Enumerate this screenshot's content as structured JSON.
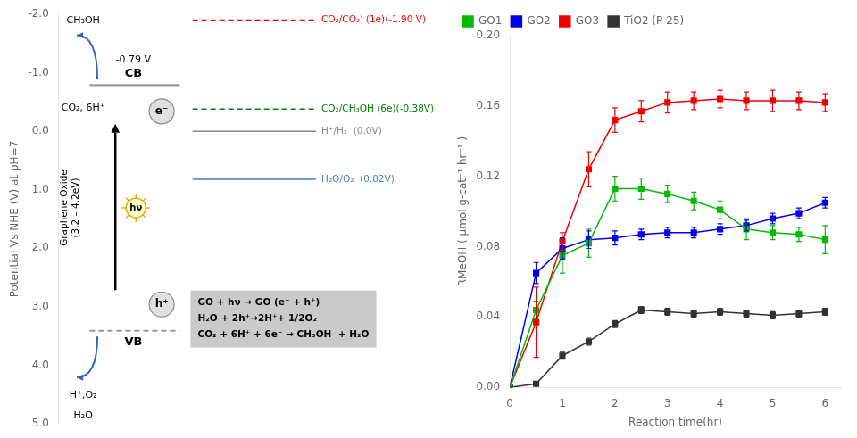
{
  "chart_data": [
    {
      "type": "levels",
      "ylabel": "Potential Vs NHE (V) at pH=7",
      "ylim": [
        5,
        -2
      ],
      "yticks": [
        {
          "value": -2,
          "label": "-2.0"
        },
        {
          "value": -1,
          "label": "-1.0"
        },
        {
          "value": 0,
          "label": "0.0"
        },
        {
          "value": 1,
          "label": "1.0"
        },
        {
          "value": 2,
          "label": "2.0"
        },
        {
          "value": 3,
          "label": "3.0"
        },
        {
          "value": 4,
          "label": "4.0"
        },
        {
          "value": 5,
          "label": "5.0"
        }
      ],
      "grid": false,
      "data_labels": true,
      "series": [
        {
          "name": "CO₂/CO₂’ (1e)(-1.90 V)",
          "type": "reference",
          "color": "red",
          "line_style": "dashed",
          "values": [
            -1.9
          ]
        },
        {
          "name": "CO₂/CH₃OH (6e)(-0.38V)",
          "type": "reference",
          "color": "green",
          "line_style": "dashed",
          "values": [
            -0.38
          ]
        },
        {
          "name": "H⁺/H₂  (0.0V)",
          "type": "reference",
          "color": "#888888",
          "line_style": "solid",
          "values": [
            0.0
          ]
        },
        {
          "name": "H₂O/O₂  (0.82V)",
          "type": "reference",
          "color": "steelblue",
          "line_style": "solid",
          "values": [
            0.82
          ]
        },
        {
          "name": "CB",
          "type": "band",
          "color": "#999999",
          "line_style": "solid",
          "values": [
            -0.79
          ],
          "value_labels": [
            "-0.79 V"
          ]
        },
        {
          "name": "VB",
          "type": "band",
          "color": "#999999",
          "line_style": "dashed",
          "values": [
            3.41
          ]
        }
      ],
      "annotations": [
        "e⁻",
        "h⁺",
        "hν",
        "Graphene Oxide\n(3.2 – 4.2eV)",
        "CH₃OH",
        "CO₂, 6H⁺",
        "H⁺,O₂",
        "H₂O",
        "GO + hν → GO (e⁻ + h⁺)",
        "H₂O + 2h⁺→2H⁺+ 1/2O₂",
        "CO₂ + 6H⁺ + 6e⁻ → CH₃OH  + H₂O"
      ]
    },
    {
      "type": "line",
      "x": [
        0,
        0.5,
        1.0,
        1.5,
        2.0,
        2.5,
        3.0,
        3.5,
        4.0,
        4.5,
        5.0,
        5.5,
        6.0
      ],
      "xlabel": "Reaction time(hr)",
      "ylabel": "RMeOH ( μmol g-cat⁻¹ hr⁻¹ )",
      "xlim": [
        0,
        6.3
      ],
      "xticks": [
        0,
        1,
        2,
        3,
        4,
        5,
        6
      ],
      "ylim": [
        0,
        0.2
      ],
      "yticks": [
        {
          "value": 0,
          "label": "0.00"
        },
        0.04,
        0.08,
        0.12,
        0.16,
        {
          "value": 0.2,
          "label": "0.20"
        }
      ],
      "grid": false,
      "legend": "upper left",
      "series": [
        {
          "name": "GO1",
          "color": "#00bb00",
          "marker": "square",
          "line_style": "solid",
          "values": [
            0,
            0.044,
            0.075,
            0.082,
            0.113,
            0.113,
            0.11,
            0.106,
            0.101,
            0.09,
            0.088,
            0.087,
            0.084
          ],
          "errors": [
            0,
            0.005,
            0.01,
            0.008,
            0.007,
            0.006,
            0.005,
            0.005,
            0.005,
            0.006,
            0.004,
            0.004,
            0.008
          ]
        },
        {
          "name": "GO2",
          "color": "#0000ee",
          "marker": "square",
          "line_style": "solid",
          "values": [
            0,
            0.065,
            0.079,
            0.084,
            0.085,
            0.087,
            0.088,
            0.088,
            0.09,
            0.092,
            0.096,
            0.099,
            0.105
          ],
          "errors": [
            0,
            0.006,
            0.006,
            0.005,
            0.004,
            0.003,
            0.003,
            0.003,
            0.003,
            0.003,
            0.003,
            0.003,
            0.003
          ]
        },
        {
          "name": "GO3",
          "color": "#ee0000",
          "marker": "square",
          "line_style": "solid",
          "values": [
            0,
            0.037,
            0.083,
            0.124,
            0.152,
            0.157,
            0.162,
            0.163,
            0.164,
            0.163,
            0.163,
            0.163,
            0.162
          ],
          "errors": [
            0,
            0.02,
            0.005,
            0.01,
            0.007,
            0.006,
            0.006,
            0.005,
            0.005,
            0.005,
            0.006,
            0.005,
            0.005
          ]
        },
        {
          "name": "TiO2 (P-25)",
          "color": "#333333",
          "marker": "square",
          "line_style": "solid",
          "values": [
            0,
            0.002,
            0.018,
            0.026,
            0.036,
            0.044,
            0.043,
            0.042,
            0.043,
            0.042,
            0.041,
            0.042,
            0.043
          ],
          "errors": [
            0,
            0.001,
            0.002,
            0.002,
            0.002,
            0.002,
            0.002,
            0.002,
            0.002,
            0.002,
            0.002,
            0.002,
            0.002
          ]
        }
      ]
    }
  ]
}
